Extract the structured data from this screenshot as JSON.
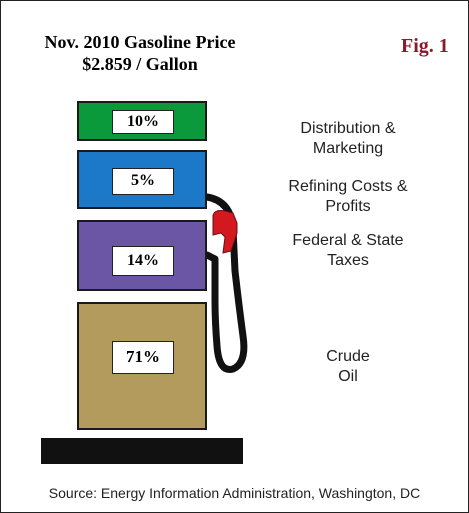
{
  "title": {
    "line1": "Nov. 2010 Gasoline Price",
    "line2": "$2.859 / Gallon"
  },
  "figure_label": "Fig. 1",
  "segments": [
    {
      "percent_label": "10%",
      "value": 10,
      "description": [
        "Distribution &",
        "Marketing"
      ],
      "color": "#0a9a3c"
    },
    {
      "percent_label": "5%",
      "value": 5,
      "description": [
        "Refining Costs &",
        "Profits"
      ],
      "color": "#1c79c9"
    },
    {
      "percent_label": "14%",
      "value": 14,
      "description": [
        "Federal & State",
        "Taxes"
      ],
      "color": "#6a56a5"
    },
    {
      "percent_label": "71%",
      "value": 71,
      "description": [
        "Crude",
        "Oil"
      ],
      "color": "#b29b5c"
    }
  ],
  "colors": {
    "nozzle": "#d4181f",
    "hose": "#111111",
    "fig_label": "#8b1a2b"
  },
  "source": "Source: Energy Information Administration, Washington, DC"
}
